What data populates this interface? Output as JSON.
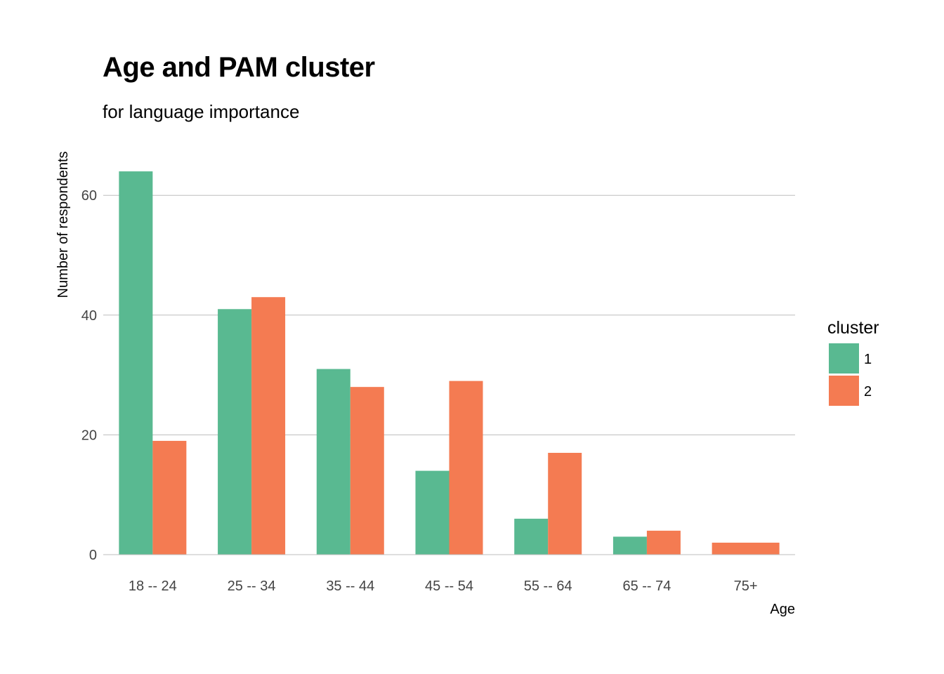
{
  "chart_data": {
    "type": "bar",
    "title": "Age and PAM cluster",
    "subtitle": "for language importance",
    "xlabel": "Age",
    "ylabel": "Number of respondents",
    "categories": [
      "18 -- 24",
      "25 -- 34",
      "35 -- 44",
      "45 -- 54",
      "55 -- 64",
      "65 -- 74",
      "75+"
    ],
    "series": [
      {
        "name": "1",
        "color": "#59b991",
        "values": [
          64,
          41,
          31,
          14,
          6,
          3,
          null
        ]
      },
      {
        "name": "2",
        "color": "#f47b52",
        "values": [
          19,
          43,
          28,
          29,
          17,
          4,
          2
        ]
      }
    ],
    "y_ticks": [
      0,
      20,
      40,
      60
    ],
    "ylim": [
      0,
      68
    ],
    "grid": true,
    "legend": {
      "title": "cluster",
      "position": "right"
    }
  }
}
